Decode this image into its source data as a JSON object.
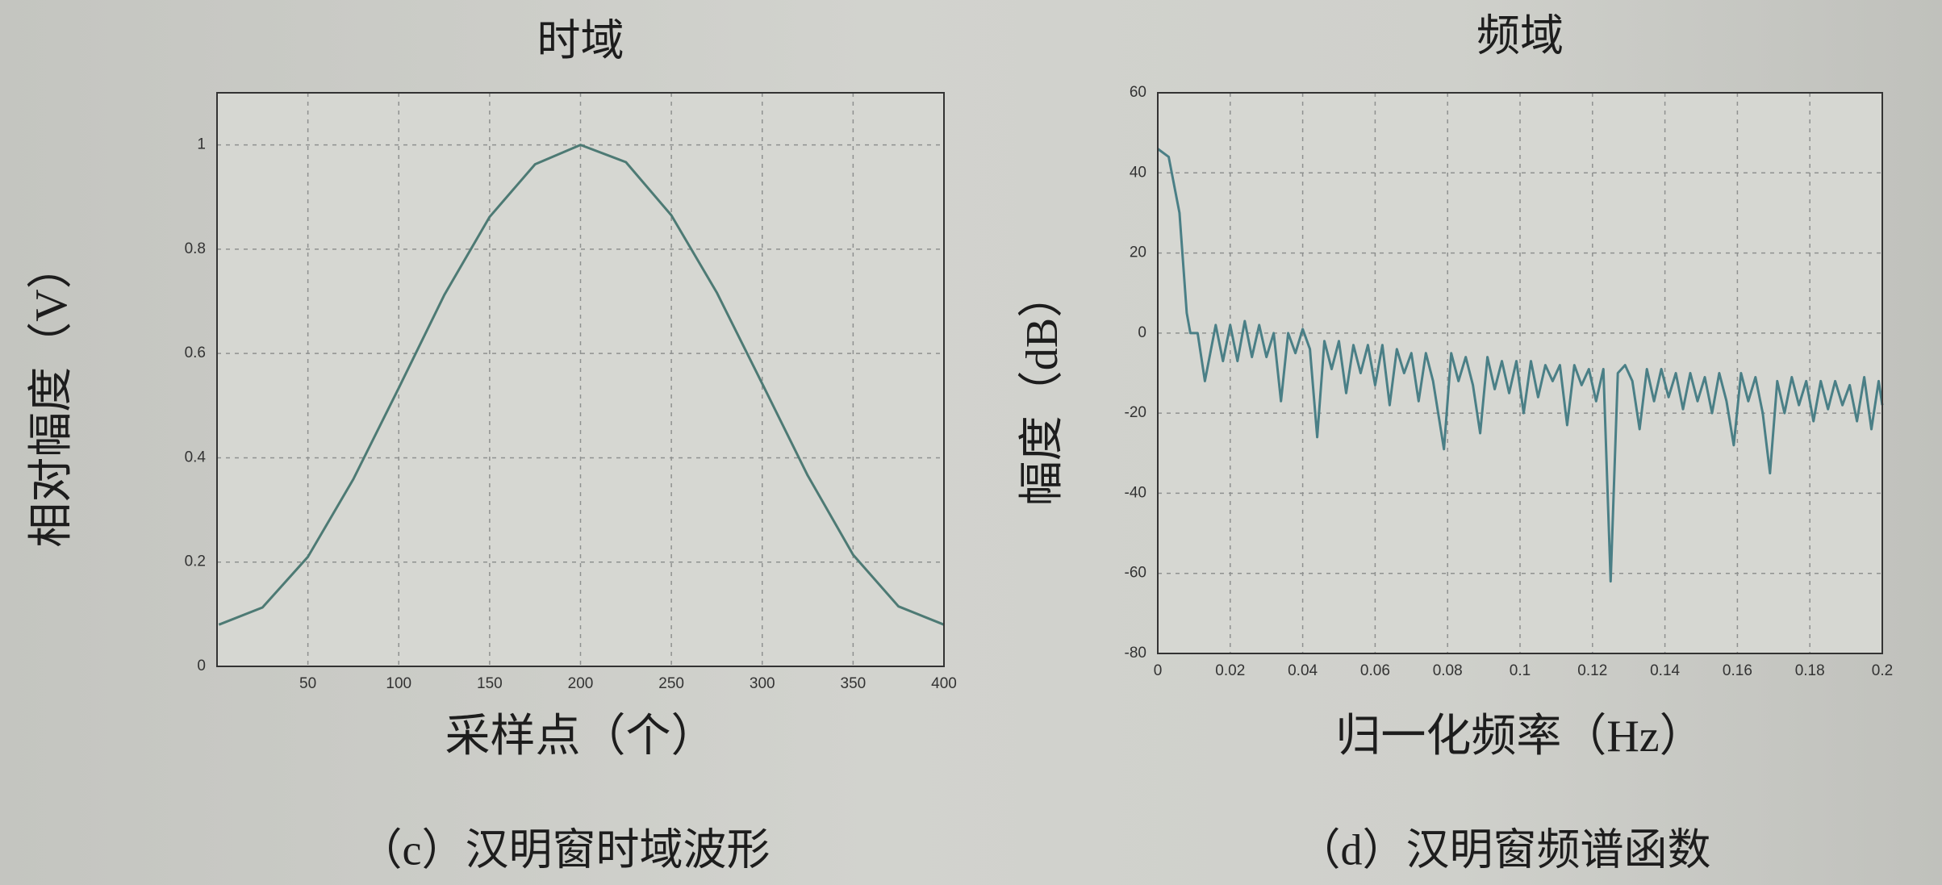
{
  "chart_data": [
    {
      "type": "line",
      "title": "时域",
      "x_label": "采样点（个）",
      "y_label": "相对幅度（V）",
      "caption": "（c）汉明窗时域波形",
      "x": [
        1,
        25,
        50,
        75,
        100,
        125,
        150,
        175,
        200,
        225,
        250,
        275,
        300,
        325,
        350,
        375,
        400
      ],
      "values": [
        0.08,
        0.113,
        0.21,
        0.359,
        0.534,
        0.712,
        0.862,
        0.963,
        1.0,
        0.967,
        0.865,
        0.717,
        0.542,
        0.366,
        0.214,
        0.115,
        0.08
      ],
      "color": "#4d7a74",
      "xlim": [
        0,
        400
      ],
      "xticks": [
        50,
        100,
        150,
        200,
        250,
        300,
        350,
        400
      ],
      "ylim": [
        0,
        1.1
      ],
      "yticks": [
        0,
        0.2,
        0.4,
        0.6,
        0.8,
        1
      ],
      "grid": true
    },
    {
      "type": "line",
      "title": "频域",
      "x_label": "归一化频率（Hz）",
      "y_label": "幅度（dB）",
      "caption": "（d）汉明窗频谱函数",
      "x": [
        0,
        0.003,
        0.006,
        0.008,
        0.009,
        0.011,
        0.013,
        0.016,
        0.018,
        0.02,
        0.022,
        0.024,
        0.026,
        0.028,
        0.03,
        0.032,
        0.034,
        0.036,
        0.038,
        0.04,
        0.042,
        0.044,
        0.046,
        0.048,
        0.05,
        0.052,
        0.054,
        0.056,
        0.058,
        0.06,
        0.062,
        0.064,
        0.066,
        0.068,
        0.07,
        0.072,
        0.074,
        0.076,
        0.079,
        0.081,
        0.083,
        0.085,
        0.087,
        0.089,
        0.091,
        0.093,
        0.095,
        0.097,
        0.099,
        0.101,
        0.103,
        0.105,
        0.107,
        0.109,
        0.111,
        0.113,
        0.115,
        0.117,
        0.119,
        0.121,
        0.123,
        0.125,
        0.127,
        0.129,
        0.131,
        0.133,
        0.135,
        0.137,
        0.139,
        0.141,
        0.143,
        0.145,
        0.147,
        0.149,
        0.151,
        0.153,
        0.155,
        0.157,
        0.159,
        0.161,
        0.163,
        0.165,
        0.167,
        0.169,
        0.171,
        0.173,
        0.175,
        0.177,
        0.179,
        0.181,
        0.183,
        0.185,
        0.187,
        0.189,
        0.191,
        0.193,
        0.195,
        0.197,
        0.199,
        0.2
      ],
      "values": [
        46,
        44,
        30,
        5,
        0,
        0,
        -12,
        2,
        -7,
        2,
        -7,
        3,
        -6,
        2,
        -6,
        0,
        -17,
        0,
        -5,
        1,
        -4,
        -26,
        -2,
        -9,
        -2,
        -15,
        -3,
        -10,
        -3,
        -13,
        -3,
        -18,
        -4,
        -10,
        -5,
        -17,
        -5,
        -12,
        -29,
        -5,
        -12,
        -6,
        -13,
        -25,
        -6,
        -14,
        -7,
        -15,
        -7,
        -20,
        -7,
        -16,
        -8,
        -12,
        -8,
        -23,
        -8,
        -13,
        -9,
        -17,
        -9,
        -62,
        -10,
        -8,
        -12,
        -24,
        -9,
        -17,
        -9,
        -16,
        -10,
        -19,
        -10,
        -17,
        -11,
        -20,
        -10,
        -17,
        -28,
        -10,
        -17,
        -11,
        -20,
        -35,
        -12,
        -20,
        -11,
        -18,
        -12,
        -22,
        -12,
        -19,
        -12,
        -18,
        -13,
        -22,
        -11,
        -24,
        -12,
        -18
      ],
      "color": "#4a7f86",
      "xlim": [
        0,
        0.2
      ],
      "xticks": [
        0,
        0.02,
        0.04,
        0.06,
        0.08,
        0.1,
        0.12,
        0.14,
        0.16,
        0.18,
        0.2
      ],
      "ylim": [
        -80,
        60
      ],
      "yticks": [
        -80,
        -60,
        -40,
        -20,
        0,
        20,
        40,
        60
      ],
      "grid": true
    }
  ]
}
